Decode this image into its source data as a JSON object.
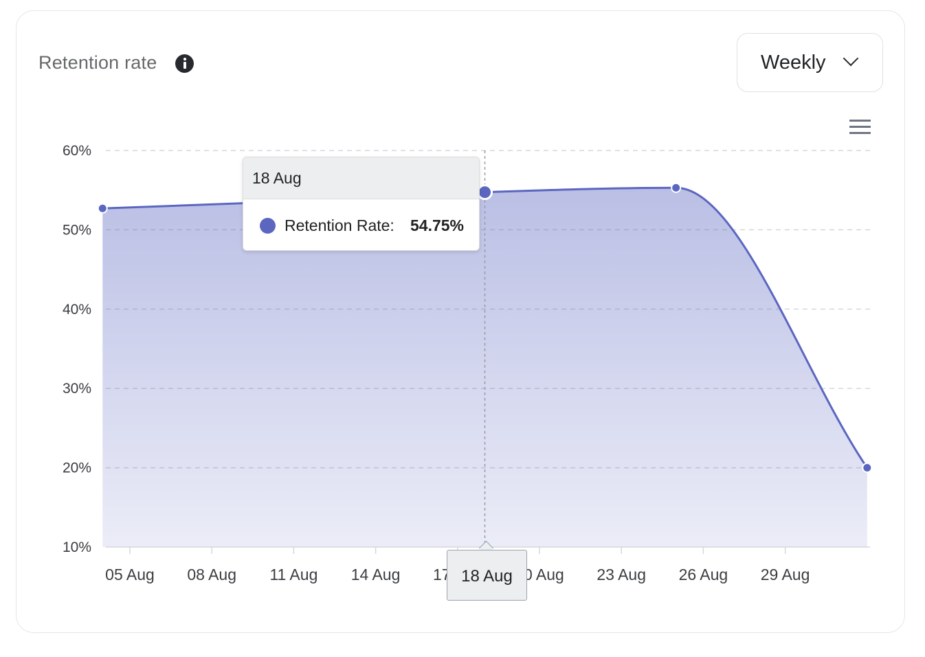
{
  "header": {
    "title": "Retention rate",
    "info_icon": "info-icon"
  },
  "period_select": {
    "selected": "Weekly",
    "icon": "chevron-down-icon"
  },
  "toolbar": {
    "menu_icon": "hamburger-menu-icon"
  },
  "tooltip": {
    "date": "18 Aug",
    "series_label": "Retention Rate:",
    "value": "54.75%"
  },
  "x_crosshair_label": "18 Aug",
  "chart_data": {
    "type": "area",
    "x": [
      "04 Aug",
      "11 Aug",
      "18 Aug",
      "25 Aug",
      "01 Sep"
    ],
    "series": [
      {
        "name": "Retention Rate",
        "values": [
          52.7,
          53.6,
          54.75,
          55.3,
          20.0
        ],
        "color": "#5b66c0"
      }
    ],
    "xticks": [
      "05 Aug",
      "08 Aug",
      "11 Aug",
      "14 Aug",
      "17 Aug",
      "20 Aug",
      "23 Aug",
      "26 Aug",
      "29 Aug"
    ],
    "yticks": [
      "10%",
      "20%",
      "30%",
      "40%",
      "50%",
      "60%"
    ],
    "ylim": [
      10,
      60
    ],
    "grid": true,
    "highlighted": "18 Aug"
  }
}
